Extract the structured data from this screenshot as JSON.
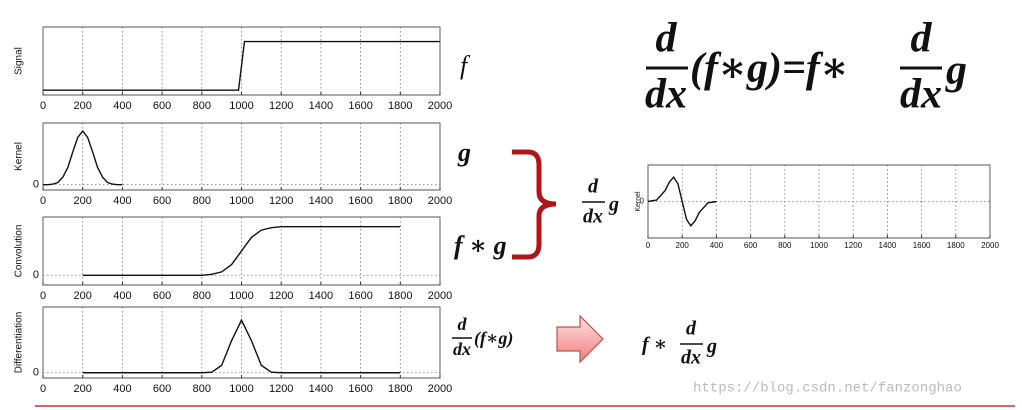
{
  "chart_data": [
    {
      "type": "line",
      "y_label": "Signal",
      "x": [
        0,
        985,
        1000,
        1015,
        2000
      ],
      "values": [
        0,
        0,
        0.5,
        1,
        1
      ],
      "xlim": [
        0,
        2000
      ],
      "xticks": [
        0,
        200,
        400,
        600,
        800,
        1000,
        1200,
        1400,
        1600,
        1800,
        2000
      ],
      "ylim": [
        -0.1,
        1.3
      ],
      "grid": true,
      "color": "#111111"
    },
    {
      "type": "line",
      "y_label": "Kernel",
      "x": [
        0,
        25,
        50,
        75,
        100,
        125,
        150,
        175,
        200,
        225,
        250,
        275,
        300,
        325,
        350,
        375,
        400
      ],
      "values": [
        0,
        0,
        0.01,
        0.04,
        0.14,
        0.32,
        0.61,
        0.88,
        1,
        0.88,
        0.61,
        0.32,
        0.14,
        0.04,
        0.01,
        0,
        0
      ],
      "xlim": [
        0,
        2000
      ],
      "xticks": [
        0,
        200,
        400,
        600,
        800,
        1000,
        1200,
        1400,
        1600,
        1800,
        2000
      ],
      "ylim": [
        -0.1,
        1.15
      ],
      "yticks": [
        0
      ],
      "grid": true,
      "color": "#111111"
    },
    {
      "type": "line",
      "y_label": "Convolution",
      "x": [
        200,
        800,
        850,
        900,
        950,
        1000,
        1050,
        1100,
        1150,
        1200,
        1800
      ],
      "values": [
        0,
        0,
        0.02,
        0.07,
        0.22,
        0.5,
        0.78,
        0.93,
        0.98,
        1,
        1
      ],
      "xlim": [
        0,
        2000
      ],
      "xticks": [
        0,
        200,
        400,
        600,
        800,
        1000,
        1200,
        1400,
        1600,
        1800,
        2000
      ],
      "ylim": [
        -0.2,
        1.2
      ],
      "yticks": [
        0
      ],
      "grid": true,
      "color": "#111111"
    },
    {
      "type": "line",
      "y_label": "Differentiation",
      "x": [
        200,
        800,
        850,
        900,
        950,
        1000,
        1050,
        1100,
        1150,
        1200,
        1800
      ],
      "values": [
        0,
        0,
        0.01,
        0.14,
        0.61,
        1,
        0.61,
        0.14,
        0.01,
        0,
        0
      ],
      "xlim": [
        0,
        2000
      ],
      "xticks": [
        0,
        200,
        400,
        600,
        800,
        1000,
        1200,
        1400,
        1600,
        1800,
        2000
      ],
      "ylim": [
        -0.1,
        1.25
      ],
      "yticks": [
        0
      ],
      "grid": true,
      "color": "#111111"
    },
    {
      "type": "line",
      "y_label": "Kernel",
      "x": [
        0,
        50,
        100,
        125,
        150,
        175,
        200,
        225,
        250,
        275,
        300,
        350,
        400
      ],
      "values": [
        0,
        0.06,
        0.45,
        0.8,
        1,
        0.73,
        0,
        -0.73,
        -1,
        -0.8,
        -0.45,
        -0.06,
        0
      ],
      "xlim": [
        0,
        2000
      ],
      "xticks": [
        0,
        200,
        400,
        600,
        800,
        1000,
        1200,
        1400,
        1600,
        1800,
        2000
      ],
      "ylim": [
        -1.5,
        1.5
      ],
      "yticks": [
        0
      ],
      "grid": true,
      "color": "#111111"
    }
  ],
  "annotations": {
    "f": "f",
    "g": "g",
    "f_conv_g": "f ∗ g",
    "deriv_conv": {
      "d": "d",
      "dx": "dx",
      "rest": "(f∗g)"
    },
    "deriv_g": {
      "d": "d",
      "dx": "dx",
      "rest": "g"
    },
    "result": {
      "lhs": "f ∗",
      "d": "d",
      "dx": "dx",
      "rest": "g"
    },
    "main_formula": {
      "d1": "d",
      "dx1": "dx",
      "middle": "(f∗g)=f∗",
      "d2": "d",
      "dx2": "dx",
      "rest": "g"
    },
    "watermark": "https://blog.csdn.net/fanzonghao"
  }
}
